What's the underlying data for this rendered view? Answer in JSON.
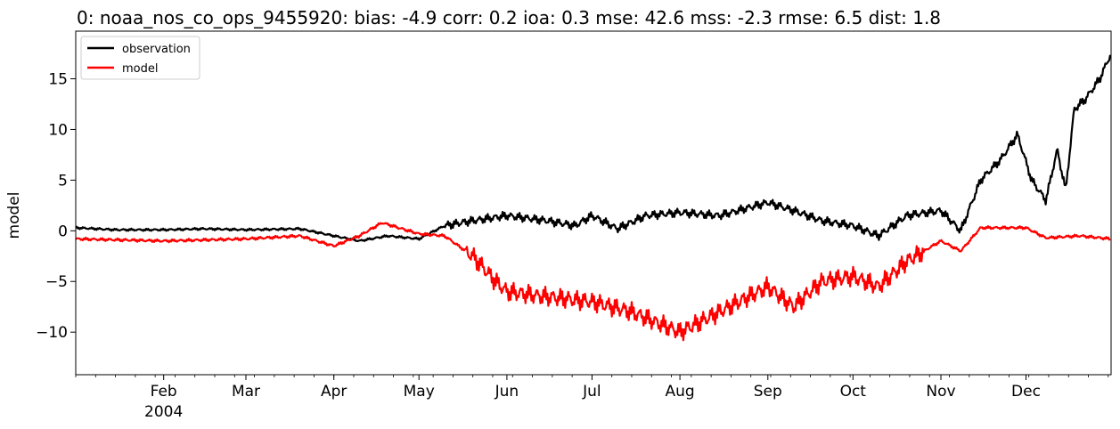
{
  "chart_data": {
    "type": "line",
    "title": "0: noaa_nos_co_ops_9455920: bias: -4.9  corr: 0.2  ioa: 0.3  mse: 42.6  mss: -2.3  rmse: 6.5  dist: 1.8",
    "xlabel": "",
    "ylabel": "model",
    "x_range": [
      "2004-01-01",
      "2004-12-31"
    ],
    "ylim": [
      -14.2,
      19.7
    ],
    "y_ticks": [
      15,
      10,
      5,
      0,
      -5,
      -10
    ],
    "y_tick_labels": [
      "15",
      "10",
      "5",
      "0",
      "−5",
      "−10"
    ],
    "x_ticks": [
      {
        "date": "2004-02-01",
        "label": "Feb",
        "sublabel": "2004"
      },
      {
        "date": "2004-03-01",
        "label": "Mar",
        "sublabel": ""
      },
      {
        "date": "2004-04-01",
        "label": "Apr",
        "sublabel": ""
      },
      {
        "date": "2004-05-01",
        "label": "May",
        "sublabel": ""
      },
      {
        "date": "2004-06-01",
        "label": "Jun",
        "sublabel": ""
      },
      {
        "date": "2004-07-01",
        "label": "Jul",
        "sublabel": ""
      },
      {
        "date": "2004-08-01",
        "label": "Aug",
        "sublabel": ""
      },
      {
        "date": "2004-09-01",
        "label": "Sep",
        "sublabel": ""
      },
      {
        "date": "2004-10-01",
        "label": "Oct",
        "sublabel": ""
      },
      {
        "date": "2004-11-01",
        "label": "Nov",
        "sublabel": ""
      },
      {
        "date": "2004-12-01",
        "label": "Dec",
        "sublabel": ""
      }
    ],
    "grid": false,
    "legend_position": "upper-left",
    "series": [
      {
        "name": "observation",
        "color": "#000000",
        "points": [
          [
            "2004-01-01",
            0.3
          ],
          [
            "2004-01-15",
            0.1
          ],
          [
            "2004-02-01",
            0.1
          ],
          [
            "2004-02-15",
            0.2
          ],
          [
            "2004-03-01",
            0.1
          ],
          [
            "2004-03-20",
            0.2
          ],
          [
            "2004-04-01",
            -0.5
          ],
          [
            "2004-04-10",
            -1.0
          ],
          [
            "2004-04-20",
            -0.5
          ],
          [
            "2004-05-01",
            -0.8
          ],
          [
            "2004-05-10",
            0.5
          ],
          [
            "2004-05-20",
            1.0
          ],
          [
            "2004-06-01",
            1.5
          ],
          [
            "2004-06-15",
            1.0
          ],
          [
            "2004-06-25",
            0.5
          ],
          [
            "2004-07-01",
            1.5
          ],
          [
            "2004-07-10",
            0.2
          ],
          [
            "2004-07-20",
            1.5
          ],
          [
            "2004-08-01",
            1.8
          ],
          [
            "2004-08-15",
            1.5
          ],
          [
            "2004-09-01",
            2.8
          ],
          [
            "2004-09-10",
            2.0
          ],
          [
            "2004-09-20",
            1.0
          ],
          [
            "2004-10-01",
            0.5
          ],
          [
            "2004-10-10",
            -0.5
          ],
          [
            "2004-10-20",
            1.5
          ],
          [
            "2004-11-01",
            2.0
          ],
          [
            "2004-11-08",
            0.0
          ],
          [
            "2004-11-15",
            5.0
          ],
          [
            "2004-11-22",
            7.0
          ],
          [
            "2004-11-28",
            9.5
          ],
          [
            "2004-12-03",
            5.0
          ],
          [
            "2004-12-08",
            3.0
          ],
          [
            "2004-12-12",
            8.0
          ],
          [
            "2004-12-15",
            4.0
          ],
          [
            "2004-12-18",
            12.0
          ],
          [
            "2004-12-22",
            13.0
          ],
          [
            "2004-12-27",
            15.0
          ],
          [
            "2004-12-31",
            17.5
          ]
        ]
      },
      {
        "name": "model",
        "color": "#ff0000",
        "points": [
          [
            "2004-01-01",
            -0.8
          ],
          [
            "2004-02-01",
            -1.0
          ],
          [
            "2004-03-01",
            -0.8
          ],
          [
            "2004-03-20",
            -0.5
          ],
          [
            "2004-04-01",
            -1.5
          ],
          [
            "2004-04-10",
            -0.5
          ],
          [
            "2004-04-18",
            0.8
          ],
          [
            "2004-04-25",
            0.2
          ],
          [
            "2004-05-01",
            -0.3
          ],
          [
            "2004-05-10",
            -0.5
          ],
          [
            "2004-05-20",
            -2.5
          ],
          [
            "2004-05-28",
            -5.0
          ],
          [
            "2004-06-01",
            -6.0
          ],
          [
            "2004-06-15",
            -6.5
          ],
          [
            "2004-07-01",
            -7.0
          ],
          [
            "2004-07-15",
            -8.0
          ],
          [
            "2004-08-01",
            -10.0
          ],
          [
            "2004-08-15",
            -8.0
          ],
          [
            "2004-09-01",
            -5.5
          ],
          [
            "2004-09-10",
            -7.5
          ],
          [
            "2004-09-20",
            -5.0
          ],
          [
            "2004-10-01",
            -4.5
          ],
          [
            "2004-10-10",
            -5.5
          ],
          [
            "2004-10-20",
            -3.0
          ],
          [
            "2004-11-01",
            -1.0
          ],
          [
            "2004-11-08",
            -2.0
          ],
          [
            "2004-11-15",
            0.3
          ],
          [
            "2004-12-01",
            0.3
          ],
          [
            "2004-12-08",
            -0.7
          ],
          [
            "2004-12-20",
            -0.5
          ],
          [
            "2004-12-31",
            -0.8
          ]
        ]
      }
    ]
  }
}
